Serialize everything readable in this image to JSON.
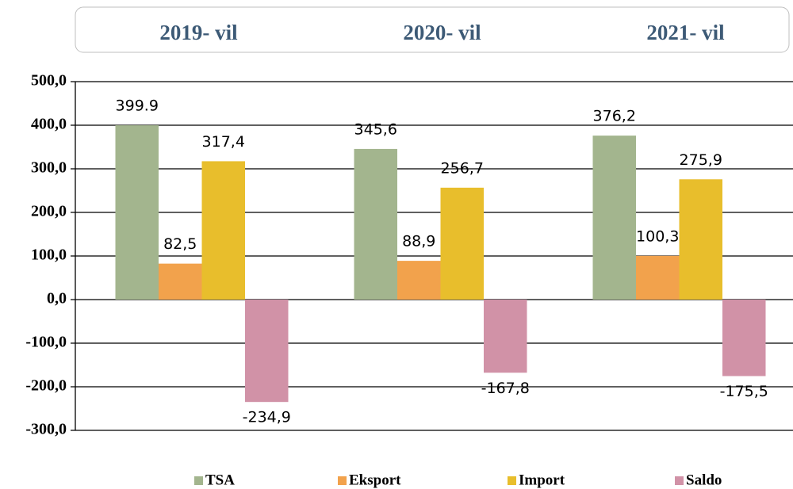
{
  "chart_data": {
    "type": "bar",
    "categories": [
      "2019- vil",
      "2020- vil",
      "2021- vil"
    ],
    "series": [
      {
        "name": "TSA",
        "color": "#a3b58e",
        "values": [
          399.9,
          345.6,
          376.2
        ],
        "value_labels": [
          "399.9",
          "345,6",
          "376,2"
        ]
      },
      {
        "name": "Eksport",
        "color": "#f2a24c",
        "values": [
          82.5,
          88.9,
          100.3
        ],
        "value_labels": [
          "82,5",
          "88,9",
          "100,3"
        ]
      },
      {
        "name": "Import",
        "color": "#e8be2c",
        "values": [
          317.4,
          256.7,
          275.9
        ],
        "value_labels": [
          "317,4",
          "256,7",
          "275,9"
        ]
      },
      {
        "name": "Saldo",
        "color": "#d192a7",
        "values": [
          -234.9,
          -167.8,
          -175.5
        ],
        "value_labels": [
          "-234,9",
          "-167,8",
          "-175,5"
        ]
      }
    ],
    "ylim": [
      -300,
      500
    ],
    "yticks": [
      {
        "value": -300,
        "label": "-300,0"
      },
      {
        "value": -200,
        "label": "-200,0"
      },
      {
        "value": -100,
        "label": "-100,0"
      },
      {
        "value": 0,
        "label": "0,0"
      },
      {
        "value": 100,
        "label": "100,0"
      },
      {
        "value": 200,
        "label": "200,0"
      },
      {
        "value": 300,
        "label": "300,0"
      },
      {
        "value": 400,
        "label": "400,0"
      },
      {
        "value": 500,
        "label": "500,0"
      }
    ],
    "grid": true,
    "legend": "bottom"
  }
}
